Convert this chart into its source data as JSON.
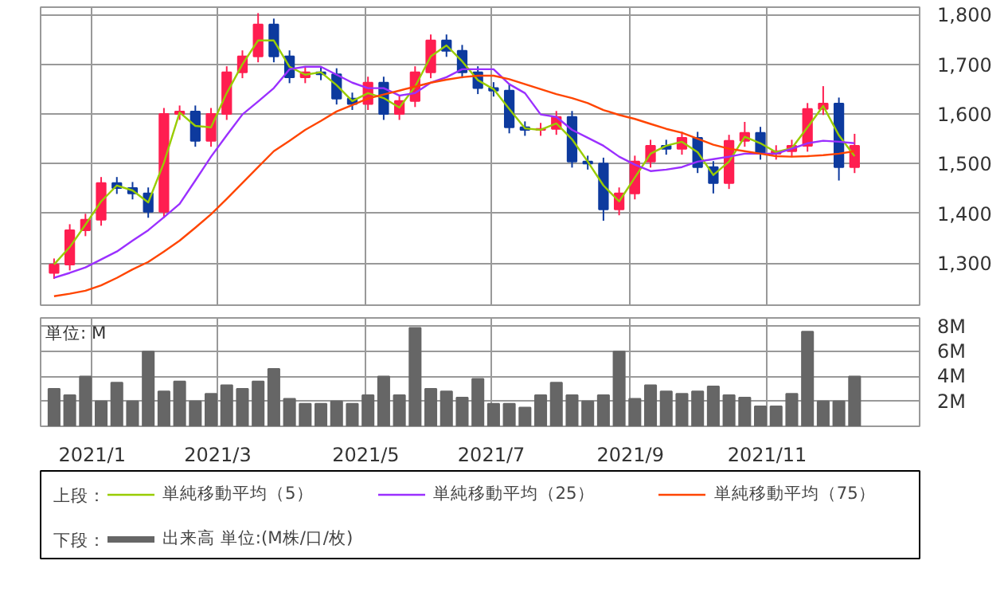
{
  "chart_data": [
    {
      "type": "candlestick",
      "tick_labels": "y",
      "grid": true,
      "legend": "bottom",
      "annotations": [
        "上段："
      ],
      "xlim": [
        "2020-12-12",
        "2022-01-08"
      ],
      "ylim": [
        1215,
        1815
      ],
      "yticks": [
        {
          "value": 1300,
          "label": "1,300"
        },
        {
          "value": 1400,
          "label": "1,400"
        },
        {
          "value": 1500,
          "label": "1,500"
        },
        {
          "value": 1600,
          "label": "1,600"
        },
        {
          "value": 1700,
          "label": "1,700"
        },
        {
          "value": 1800,
          "label": "1,800"
        }
      ],
      "xticks": [
        {
          "value": "2021-01-04",
          "label": null
        },
        {
          "value": "2021-03-01",
          "label": null
        },
        {
          "value": "2021-05-06",
          "label": null
        },
        {
          "value": "2021-07-01",
          "label": null
        },
        {
          "value": "2021-09-01",
          "label": null
        },
        {
          "value": "2021-11-01",
          "label": null
        }
      ],
      "x": [
        "2020-12-18",
        "2020-12-25",
        "2021-01-01",
        "2021-01-08",
        "2021-01-15",
        "2021-01-22",
        "2021-01-29",
        "2021-02-05",
        "2021-02-12",
        "2021-02-19",
        "2021-02-26",
        "2021-03-05",
        "2021-03-12",
        "2021-03-19",
        "2021-03-26",
        "2021-04-02",
        "2021-04-09",
        "2021-04-16",
        "2021-04-23",
        "2021-04-30",
        "2021-05-07",
        "2021-05-14",
        "2021-05-21",
        "2021-05-28",
        "2021-06-04",
        "2021-06-11",
        "2021-06-18",
        "2021-06-25",
        "2021-07-02",
        "2021-07-09",
        "2021-07-16",
        "2021-07-23",
        "2021-07-30",
        "2021-08-06",
        "2021-08-13",
        "2021-08-20",
        "2021-08-27",
        "2021-09-03",
        "2021-09-10",
        "2021-09-17",
        "2021-09-24",
        "2021-10-01",
        "2021-10-08",
        "2021-10-15",
        "2021-10-22",
        "2021-10-29",
        "2021-11-05",
        "2021-11-12",
        "2021-11-19",
        "2021-11-26",
        "2021-12-03",
        "2021-12-10"
      ],
      "ohlc": [
        [
          1280,
          1309,
          1268,
          1297
        ],
        [
          1297,
          1378,
          1285,
          1366
        ],
        [
          1366,
          1399,
          1354,
          1387
        ],
        [
          1387,
          1473,
          1375,
          1461
        ],
        [
          1461,
          1473,
          1439,
          1451
        ],
        [
          1451,
          1463,
          1428,
          1440
        ],
        [
          1440,
          1452,
          1391,
          1403
        ],
        [
          1403,
          1612,
          1391,
          1600
        ],
        [
          1600,
          1617,
          1588,
          1605
        ],
        [
          1605,
          1617,
          1534,
          1546
        ],
        [
          1546,
          1612,
          1534,
          1600
        ],
        [
          1600,
          1696,
          1588,
          1684
        ],
        [
          1684,
          1728,
          1672,
          1716
        ],
        [
          1716,
          1803,
          1704,
          1780
        ],
        [
          1780,
          1792,
          1704,
          1716
        ],
        [
          1716,
          1728,
          1662,
          1674
        ],
        [
          1674,
          1696,
          1662,
          1684
        ],
        [
          1684,
          1696,
          1668,
          1680
        ],
        [
          1680,
          1692,
          1619,
          1631
        ],
        [
          1631,
          1643,
          1608,
          1620
        ],
        [
          1620,
          1675,
          1608,
          1663
        ],
        [
          1663,
          1675,
          1588,
          1600
        ],
        [
          1600,
          1638,
          1588,
          1626
        ],
        [
          1626,
          1696,
          1614,
          1684
        ],
        [
          1684,
          1760,
          1672,
          1748
        ],
        [
          1748,
          1760,
          1715,
          1727
        ],
        [
          1727,
          1739,
          1672,
          1684
        ],
        [
          1684,
          1696,
          1640,
          1652
        ],
        [
          1652,
          1664,
          1635,
          1647
        ],
        [
          1647,
          1659,
          1561,
          1573
        ],
        [
          1573,
          1585,
          1556,
          1568
        ],
        [
          1568,
          1582,
          1556,
          1570
        ],
        [
          1570,
          1606,
          1558,
          1594
        ],
        [
          1594,
          1606,
          1492,
          1504
        ],
        [
          1504,
          1516,
          1488,
          1500
        ],
        [
          1500,
          1512,
          1385,
          1408
        ],
        [
          1408,
          1452,
          1396,
          1440
        ],
        [
          1440,
          1516,
          1428,
          1504
        ],
        [
          1504,
          1548,
          1492,
          1536
        ],
        [
          1536,
          1548,
          1518,
          1530
        ],
        [
          1530,
          1564,
          1518,
          1552
        ],
        [
          1552,
          1564,
          1481,
          1493
        ],
        [
          1493,
          1505,
          1440,
          1461
        ],
        [
          1461,
          1558,
          1449,
          1546
        ],
        [
          1546,
          1584,
          1534,
          1562
        ],
        [
          1562,
          1574,
          1508,
          1520
        ],
        [
          1520,
          1537,
          1508,
          1525
        ],
        [
          1525,
          1548,
          1513,
          1536
        ],
        [
          1536,
          1622,
          1524,
          1610
        ],
        [
          1610,
          1656,
          1598,
          1621
        ],
        [
          1621,
          1633,
          1466,
          1493
        ],
        [
          1493,
          1560,
          1481,
          1536
        ]
      ],
      "colors": [
        "#ff1e50",
        "#ff1e50",
        "#ff1e50",
        "#ff1e50",
        "#0d3a9e",
        "#0d3a9e",
        "#0d3a9e",
        "#ff1e50",
        "#ff1e50",
        "#0d3a9e",
        "#ff1e50",
        "#ff1e50",
        "#ff1e50",
        "#ff1e50",
        "#0d3a9e",
        "#0d3a9e",
        "#ff1e50",
        "#0d3a9e",
        "#0d3a9e",
        "#0d3a9e",
        "#ff1e50",
        "#0d3a9e",
        "#ff1e50",
        "#ff1e50",
        "#ff1e50",
        "#0d3a9e",
        "#0d3a9e",
        "#0d3a9e",
        "#0d3a9e",
        "#0d3a9e",
        "#0d3a9e",
        "#ff1e50",
        "#ff1e50",
        "#0d3a9e",
        "#0d3a9e",
        "#0d3a9e",
        "#ff1e50",
        "#ff1e50",
        "#ff1e50",
        "#0d3a9e",
        "#ff1e50",
        "#0d3a9e",
        "#0d3a9e",
        "#ff1e50",
        "#ff1e50",
        "#0d3a9e",
        "#ff1e50",
        "#ff1e50",
        "#ff1e50",
        "#ff1e50",
        "#0d3a9e",
        "#ff1e50"
      ],
      "series": [
        {
          "type": "line",
          "name": "単純移動平均（5）",
          "color": "#99cc00",
          "values": [
            1297,
            1332,
            1377,
            1424,
            1456,
            1446,
            1422,
            1502,
            1603,
            1576,
            1573,
            1642,
            1700,
            1748,
            1748,
            1695,
            1679,
            1684,
            1658,
            1626,
            1642,
            1632,
            1613,
            1655,
            1716,
            1738,
            1706,
            1668,
            1650,
            1610,
            1571,
            1568,
            1581,
            1549,
            1504,
            1456,
            1424,
            1472,
            1520,
            1536,
            1544,
            1523,
            1477,
            1504,
            1554,
            1541,
            1523,
            1531,
            1573,
            1616,
            1557,
            1515
          ]
        },
        {
          "type": "line",
          "name": "単純移動平均（25）",
          "color": "#9b30ff",
          "values": [
            1270,
            1280,
            1291,
            1307,
            1323,
            1345,
            1366,
            1392,
            1419,
            1466,
            1514,
            1557,
            1599,
            1625,
            1652,
            1690,
            1695,
            1695,
            1679,
            1663,
            1652,
            1652,
            1637,
            1642,
            1663,
            1674,
            1690,
            1690,
            1690,
            1660,
            1642,
            1599,
            1594,
            1568,
            1552,
            1536,
            1514,
            1498,
            1485,
            1488,
            1493,
            1504,
            1509,
            1514,
            1520,
            1520,
            1520,
            1530,
            1541,
            1546,
            1544,
            1541
          ]
        },
        {
          "type": "line",
          "name": "単純移動平均（75）",
          "color": "#ff4500",
          "values": [
            1233,
            1238,
            1244,
            1255,
            1270,
            1287,
            1302,
            1323,
            1345,
            1371,
            1398,
            1429,
            1461,
            1493,
            1525,
            1546,
            1568,
            1586,
            1605,
            1618,
            1631,
            1639,
            1647,
            1655,
            1663,
            1669,
            1674,
            1677,
            1677,
            1670,
            1660,
            1650,
            1640,
            1632,
            1622,
            1608,
            1598,
            1590,
            1580,
            1570,
            1562,
            1550,
            1538,
            1530,
            1525,
            1520,
            1515,
            1514,
            1515,
            1517,
            1520,
            1525
          ]
        }
      ]
    },
    {
      "type": "bar",
      "grid": true,
      "legend": "bottom",
      "annotations": [
        "単位: M",
        "下段："
      ],
      "xlim": [
        "2020-12-12",
        "2022-01-08"
      ],
      "ylim": [
        0,
        8.7
      ],
      "yticks": [
        {
          "value": 2,
          "label": "2M"
        },
        {
          "value": 4,
          "label": "4M"
        },
        {
          "value": 6,
          "label": "6M"
        },
        {
          "value": 8,
          "label": "8M"
        }
      ],
      "xticks": [
        {
          "value": "2021-01-04",
          "label": "2021/1"
        },
        {
          "value": "2021-03-01",
          "label": "2021/3"
        },
        {
          "value": "2021-05-06",
          "label": "2021/5"
        },
        {
          "value": "2021-07-01",
          "label": "2021/7"
        },
        {
          "value": "2021-09-01",
          "label": "2021/9"
        },
        {
          "value": "2021-11-01",
          "label": "2021/11"
        }
      ],
      "x": [
        "2020-12-18",
        "2020-12-25",
        "2021-01-01",
        "2021-01-08",
        "2021-01-15",
        "2021-01-22",
        "2021-01-29",
        "2021-02-05",
        "2021-02-12",
        "2021-02-19",
        "2021-02-26",
        "2021-03-05",
        "2021-03-12",
        "2021-03-19",
        "2021-03-26",
        "2021-04-02",
        "2021-04-09",
        "2021-04-16",
        "2021-04-23",
        "2021-04-30",
        "2021-05-07",
        "2021-05-14",
        "2021-05-21",
        "2021-05-28",
        "2021-06-04",
        "2021-06-11",
        "2021-06-18",
        "2021-06-25",
        "2021-07-02",
        "2021-07-09",
        "2021-07-16",
        "2021-07-23",
        "2021-07-30",
        "2021-08-06",
        "2021-08-13",
        "2021-08-20",
        "2021-08-27",
        "2021-09-03",
        "2021-09-10",
        "2021-09-17",
        "2021-09-24",
        "2021-10-01",
        "2021-10-08",
        "2021-10-15",
        "2021-10-22",
        "2021-10-29",
        "2021-11-05",
        "2021-11-12",
        "2021-11-19",
        "2021-11-26",
        "2021-12-03",
        "2021-12-10"
      ],
      "series": [
        {
          "name": "出来高 単位:(M株/口/枚)",
          "color": "#666666",
          "values": [
            3.0,
            2.5,
            4.0,
            2.0,
            3.5,
            2.0,
            6.0,
            2.8,
            3.6,
            2.0,
            2.6,
            3.3,
            3.0,
            3.6,
            4.6,
            2.2,
            1.8,
            1.8,
            2.0,
            1.8,
            2.5,
            4.0,
            2.5,
            7.9,
            3.0,
            2.8,
            2.3,
            3.8,
            1.8,
            1.8,
            1.5,
            2.5,
            3.5,
            2.5,
            2.0,
            2.5,
            6.0,
            2.2,
            3.3,
            2.8,
            2.6,
            2.8,
            3.2,
            2.5,
            2.3,
            1.6,
            1.6,
            2.6,
            7.6,
            2.0,
            2.0,
            4.0
          ]
        }
      ]
    }
  ]
}
